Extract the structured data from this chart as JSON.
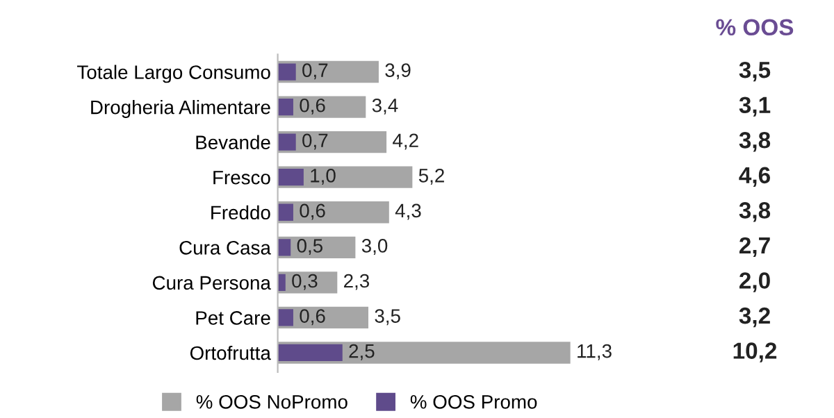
{
  "chart_data": {
    "type": "bar",
    "orientation": "horizontal",
    "categories": [
      "Totale Largo Consumo",
      "Drogheria Alimentare",
      "Bevande",
      "Fresco",
      "Freddo",
      "Cura Casa",
      "Cura Persona",
      "Pet Care",
      "Ortofrutta"
    ],
    "series": [
      {
        "name": "% OOS NoPromo",
        "color": "#a6a6a6",
        "values": [
          3.9,
          3.4,
          4.2,
          5.2,
          4.3,
          3.0,
          2.3,
          3.5,
          11.3
        ],
        "value_labels": [
          "3,9",
          "3,4",
          "4,2",
          "5,2",
          "4,3",
          "3,0",
          "2,3",
          "3,5",
          "11,3"
        ]
      },
      {
        "name": "% OOS Promo",
        "color": "#5f4b8b",
        "values": [
          0.7,
          0.6,
          0.7,
          1.0,
          0.6,
          0.5,
          0.3,
          0.6,
          2.5
        ],
        "value_labels": [
          "0,7",
          "0,6",
          "0,7",
          "1,0",
          "0,6",
          "0,5",
          "0,3",
          "0,6",
          "2,5"
        ]
      }
    ],
    "legend": "bottom",
    "annotations": [
      "% OOS",
      "3,5",
      "3,1",
      "3,8",
      "4,6",
      "3,8",
      "2,7",
      "2,0",
      "3,2",
      "10,2"
    ]
  }
}
